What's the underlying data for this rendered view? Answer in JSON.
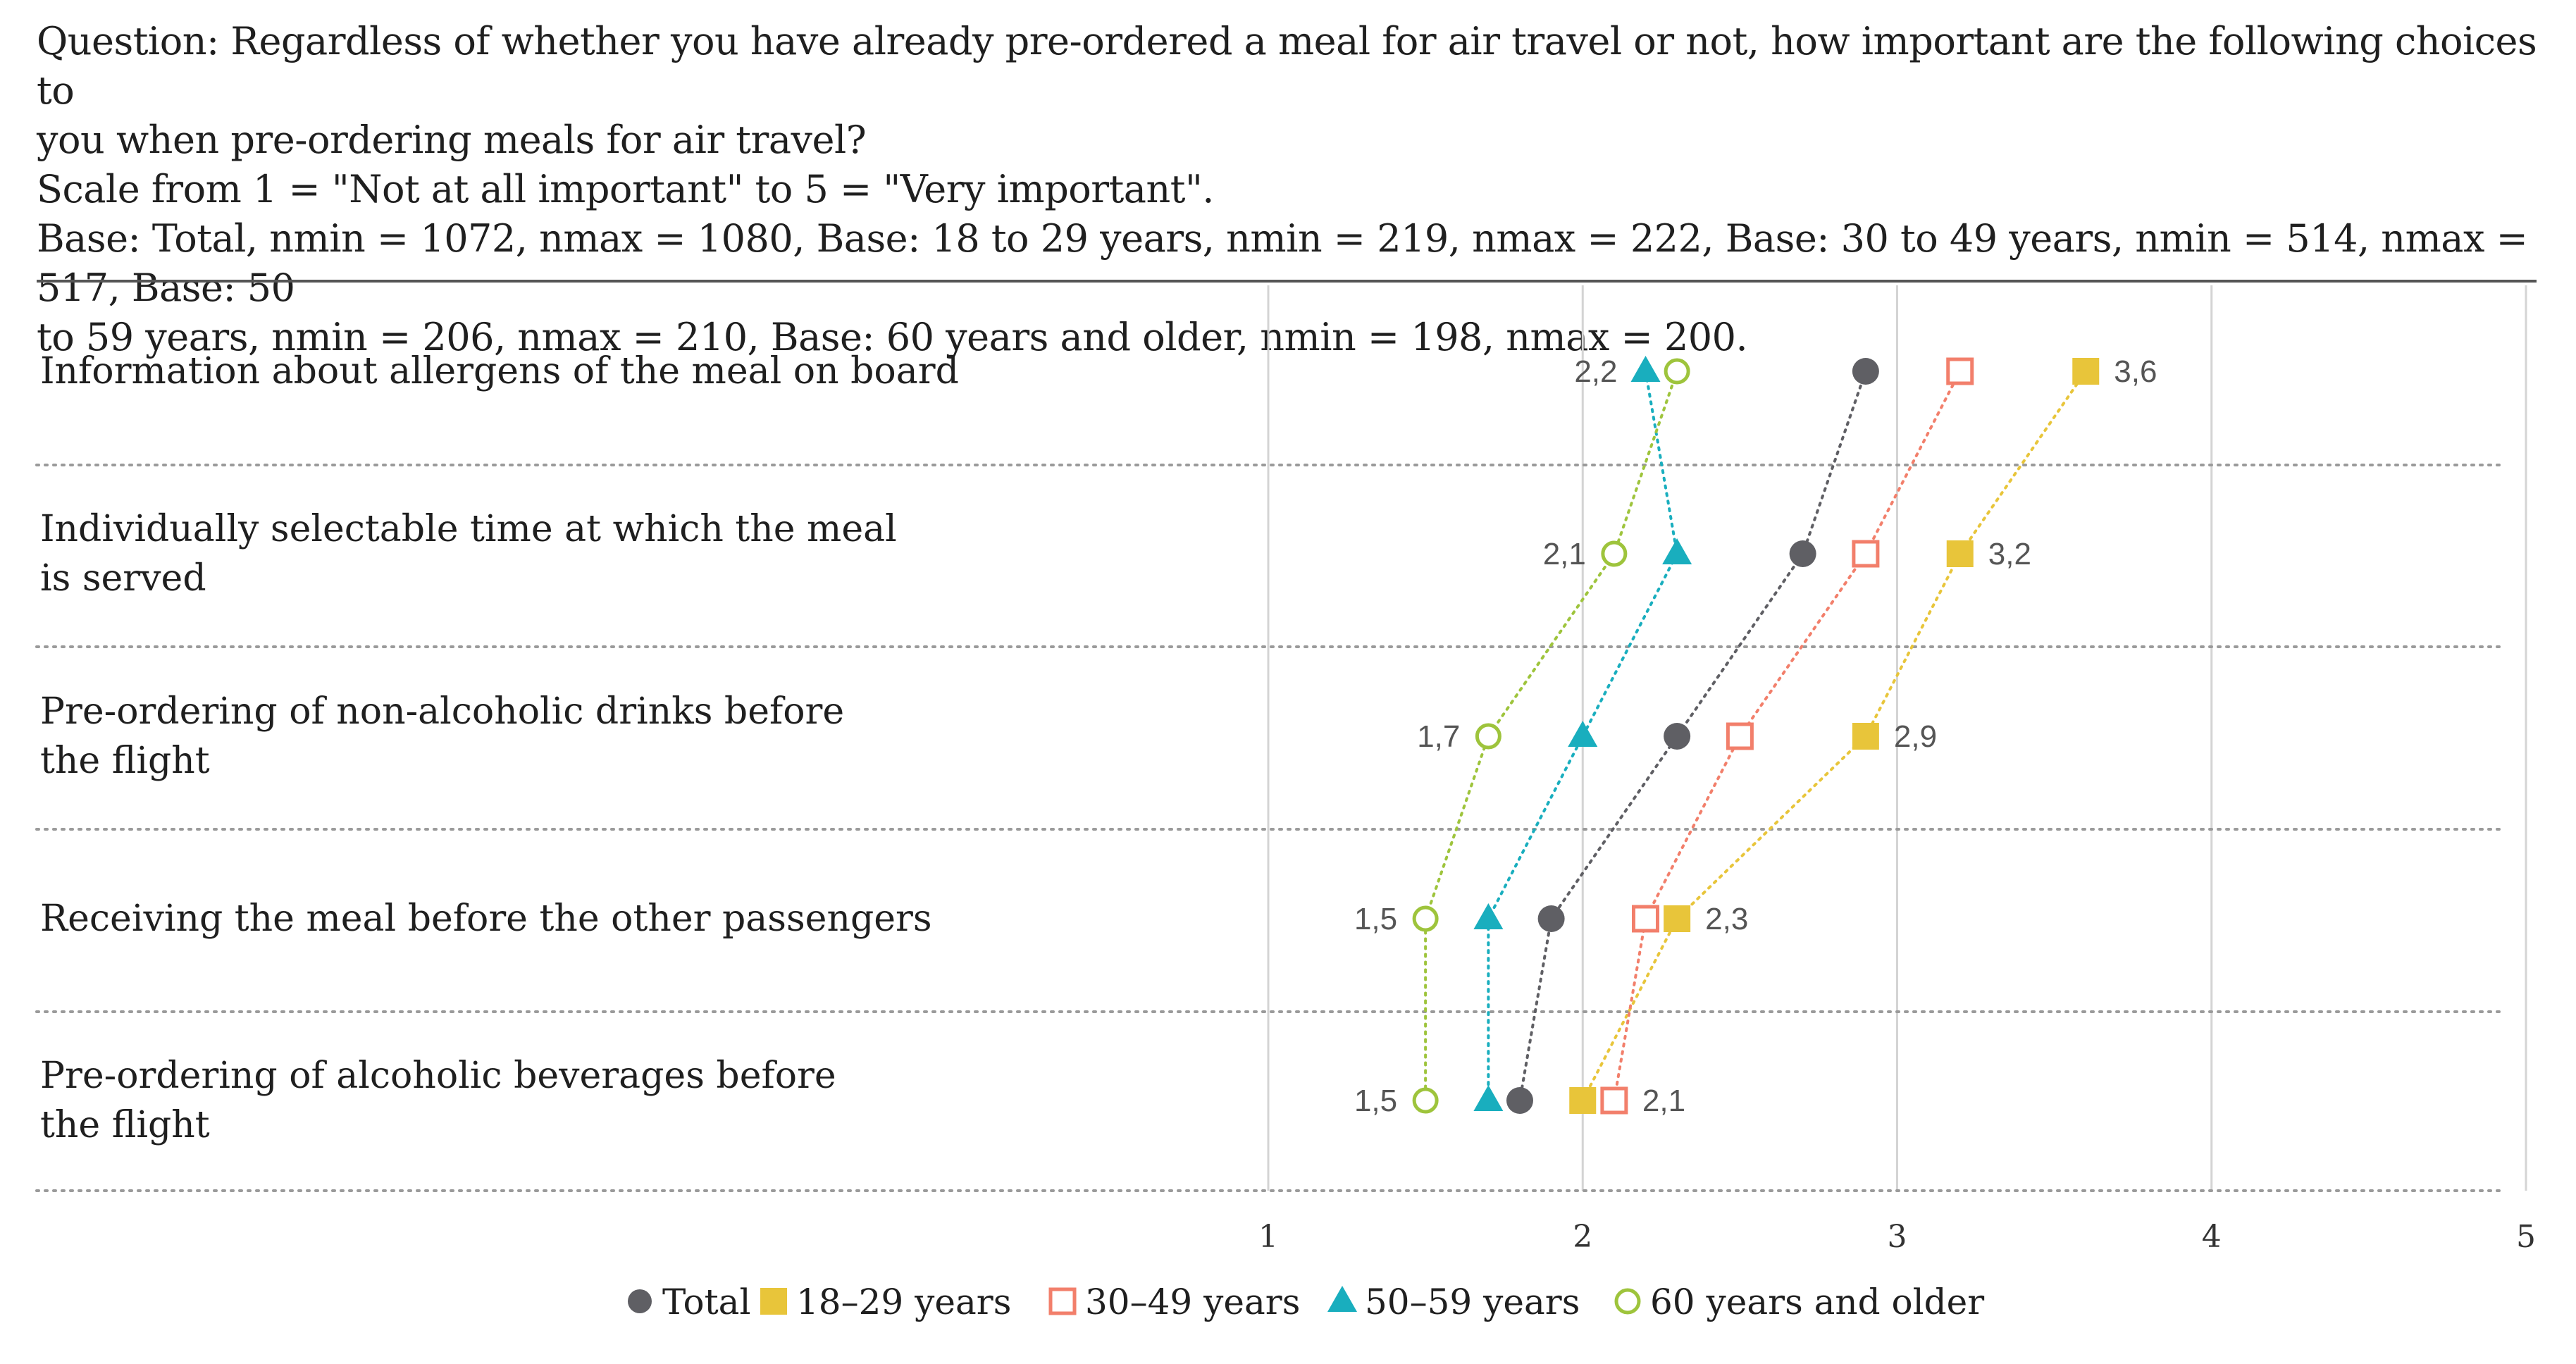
{
  "header": {
    "question_line1": "Question: Regardless of whether you have already pre-ordered a meal for air travel or not, how important are the following choices to",
    "question_line2": "you when pre-ordering meals for air travel?",
    "scale_line": "Scale from 1 = \"Not at all important\" to 5 = \"Very important\".",
    "base_line1": "Base: Total, nmin = 1072, nmax = 1080, Base: 18 to 29 years, nmin = 219, nmax = 222, Base: 30 to 49 years, nmin = 514, nmax = 517, Base: 50",
    "base_line2": "to 59 years, nmin = 206, nmax = 210, Base: 60 years and older, nmin = 198, nmax = 200."
  },
  "chart_data": {
    "type": "scatter",
    "orientation": "horizontal-dot-plot",
    "title": "",
    "xlabel": "",
    "ylabel": "",
    "xlim": [
      1,
      5
    ],
    "x_ticks": [
      1,
      2,
      3,
      4,
      5
    ],
    "grid": true,
    "legend_position": "bottom",
    "categories": [
      [
        "Information about allergens of the meal on board"
      ],
      [
        "Individually selectable time at which the meal",
        " is served"
      ],
      [
        "Pre-ordering of non-alcoholic drinks before",
        "the flight"
      ],
      [
        "Receiving the meal before the other passengers"
      ],
      [
        "Pre-ordering of alcoholic beverages before",
        "the flight"
      ]
    ],
    "series": [
      {
        "name": "Total",
        "marker": "circle-filled",
        "color": "#5f5f64",
        "values": [
          2.9,
          2.7,
          2.3,
          1.9,
          1.8
        ]
      },
      {
        "name": "18–29 years",
        "marker": "square-filled",
        "color": "#e8c53a",
        "values": [
          3.6,
          3.2,
          2.9,
          2.3,
          2.0
        ]
      },
      {
        "name": "30–49 years",
        "marker": "square-open",
        "color": "#f27f6b",
        "values": [
          3.2,
          2.9,
          2.5,
          2.2,
          2.1
        ]
      },
      {
        "name": "50–59 years",
        "marker": "triangle-filled",
        "color": "#19aebe",
        "values": [
          2.2,
          2.3,
          2.0,
          1.7,
          1.7
        ]
      },
      {
        "name": "60 years and older",
        "marker": "circle-open",
        "color": "#9ec43c",
        "values": [
          2.3,
          2.1,
          1.7,
          1.5,
          1.5
        ]
      }
    ],
    "data_labels": [
      {
        "left": "2,2",
        "right": "3,6"
      },
      {
        "left": "2,1",
        "right": "3,2"
      },
      {
        "left": "1,7",
        "right": "2,9"
      },
      {
        "left": "1,5",
        "right": "2,3"
      },
      {
        "left": "1,5",
        "right": "2,1"
      }
    ],
    "colors": {
      "grid": "#d4d4d4",
      "row_divider": "#9a9a9a",
      "header_rule": "#555555"
    }
  }
}
